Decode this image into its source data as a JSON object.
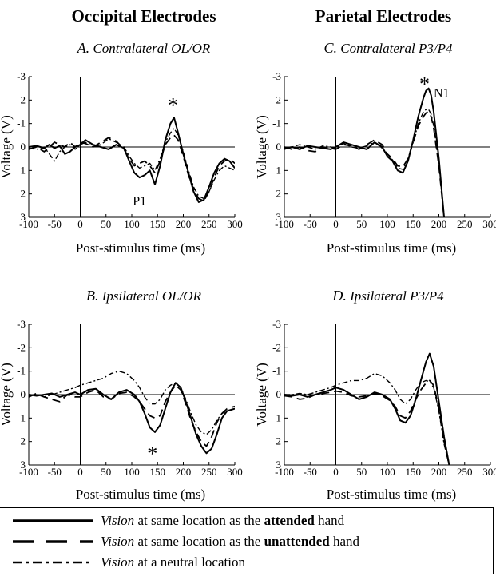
{
  "columns": {
    "left": "Occipital Electrodes",
    "right": "Parietal Electrodes"
  },
  "legend": [
    {
      "style": "solid",
      "italic": "Vision",
      "middle": " at same location as the ",
      "bold": "attended",
      "end": " hand"
    },
    {
      "style": "dashed",
      "italic": "Vision",
      "middle": " at same location as the ",
      "bold": "unattended",
      "end": " hand"
    },
    {
      "style": "dashdot",
      "italic": "Vision",
      "middle": " at a neutral location",
      "bold": "",
      "end": ""
    }
  ],
  "chart_data": [
    {
      "panel": "A",
      "type": "line",
      "title_letter": "A.",
      "title": "Contralateral OL/OR",
      "xlabel": "Post-stimulus time (ms)",
      "ylabel": "Voltage (V)",
      "xlim": [
        -100,
        300
      ],
      "ylim": [
        3,
        -3
      ],
      "xticks": [
        "-100",
        "-50",
        "0",
        "50",
        "100",
        "150",
        "200",
        "250",
        "300"
      ],
      "yticks": [
        "-3",
        "-2",
        "-1",
        "0",
        "1",
        "2",
        "3"
      ],
      "annotations": [
        {
          "text": "*",
          "x": 180,
          "y": -1.9
        },
        {
          "text": "P1",
          "x": 115,
          "y": 2.3
        }
      ],
      "series": [
        {
          "style": "solid",
          "x": [
            -100,
            -85,
            -70,
            -60,
            -50,
            -40,
            -30,
            -20,
            -10,
            0,
            10,
            25,
            40,
            55,
            70,
            85,
            95,
            105,
            115,
            125,
            135,
            145,
            155,
            165,
            175,
            182,
            190,
            200,
            210,
            220,
            230,
            240,
            250,
            260,
            270,
            280,
            290,
            300
          ],
          "y": [
            0.0,
            -0.05,
            0.05,
            -0.1,
            0.05,
            -0.05,
            0.3,
            0.2,
            0.0,
            -0.1,
            -0.3,
            -0.1,
            0.0,
            0.1,
            -0.1,
            0.05,
            0.6,
            1.1,
            1.3,
            1.2,
            1.0,
            1.6,
            0.8,
            -0.3,
            -1.0,
            -1.25,
            -0.6,
            0.3,
            1.1,
            1.9,
            2.35,
            2.25,
            1.7,
            1.1,
            0.7,
            0.5,
            0.6,
            0.9
          ]
        },
        {
          "style": "dashed",
          "x": [
            -100,
            -85,
            -70,
            -60,
            -50,
            -40,
            -30,
            -20,
            -10,
            0,
            10,
            25,
            40,
            55,
            70,
            85,
            95,
            105,
            115,
            125,
            135,
            145,
            155,
            165,
            175,
            182,
            190,
            200,
            210,
            220,
            230,
            240,
            250,
            260,
            270,
            280,
            290,
            300
          ],
          "y": [
            0.1,
            0.0,
            0.2,
            0.0,
            -0.2,
            -0.1,
            0.0,
            -0.2,
            0.0,
            -0.2,
            -0.15,
            0.0,
            -0.2,
            -0.4,
            -0.25,
            0.1,
            0.5,
            0.8,
            0.7,
            0.6,
            0.8,
            1.1,
            0.6,
            -0.1,
            -0.4,
            -0.5,
            -0.3,
            0.4,
            1.2,
            1.8,
            2.2,
            2.3,
            1.9,
            1.3,
            0.8,
            0.6,
            0.5,
            0.7
          ]
        },
        {
          "style": "dashdot",
          "x": [
            -100,
            -85,
            -70,
            -60,
            -50,
            -40,
            -30,
            -20,
            -10,
            0,
            10,
            25,
            40,
            55,
            70,
            85,
            95,
            105,
            115,
            125,
            135,
            145,
            155,
            165,
            175,
            182,
            190,
            200,
            210,
            220,
            230,
            240,
            250,
            260,
            270,
            280,
            290,
            300
          ],
          "y": [
            0.05,
            0.1,
            0.0,
            0.3,
            0.6,
            0.2,
            0.0,
            -0.1,
            0.1,
            -0.1,
            -0.2,
            0.0,
            -0.1,
            -0.35,
            -0.2,
            0.0,
            0.4,
            0.7,
            0.9,
            0.8,
            0.7,
            1.0,
            0.5,
            -0.2,
            -0.6,
            -0.8,
            -0.5,
            0.2,
            1.0,
            1.7,
            2.1,
            2.2,
            1.9,
            1.4,
            1.0,
            0.8,
            0.9,
            1.0
          ]
        }
      ]
    },
    {
      "panel": "C",
      "type": "line",
      "title_letter": "C.",
      "title": "Contralateral P3/P4",
      "xlabel": "Post-stimulus time (ms)",
      "ylabel": "Voltage (V)",
      "xlim": [
        -100,
        300
      ],
      "ylim": [
        3,
        -3
      ],
      "xticks": [
        "-100",
        "-50",
        "0",
        "50",
        "100",
        "150",
        "200",
        "250",
        "300"
      ],
      "yticks": [
        "-3",
        "-2",
        "-1",
        "0",
        "1",
        "2",
        "3"
      ],
      "annotations": [
        {
          "text": "*",
          "x": 172,
          "y": -2.8
        },
        {
          "text": "N1",
          "x": 205,
          "y": -2.3
        }
      ],
      "series": [
        {
          "style": "solid",
          "x": [
            -100,
            -85,
            -70,
            -55,
            -40,
            -25,
            -10,
            0,
            15,
            30,
            45,
            60,
            75,
            90,
            100,
            110,
            120,
            130,
            140,
            150,
            160,
            170,
            175,
            180,
            185,
            190,
            200,
            210
          ],
          "y": [
            0.05,
            0.0,
            0.1,
            -0.05,
            0.0,
            0.05,
            0.1,
            0.0,
            -0.2,
            -0.1,
            0.0,
            0.1,
            -0.2,
            0.0,
            0.4,
            0.6,
            1.0,
            1.1,
            0.6,
            -0.3,
            -1.3,
            -2.1,
            -2.4,
            -2.5,
            -2.2,
            -1.5,
            0.5,
            3.0
          ]
        },
        {
          "style": "dashed",
          "x": [
            -100,
            -85,
            -70,
            -55,
            -40,
            -25,
            -10,
            0,
            15,
            30,
            45,
            60,
            75,
            90,
            100,
            110,
            120,
            130,
            140,
            150,
            160,
            170,
            175,
            180,
            185,
            190,
            200,
            210
          ],
          "y": [
            0.0,
            0.1,
            0.0,
            0.15,
            0.2,
            0.0,
            0.05,
            0.1,
            -0.1,
            -0.05,
            0.1,
            -0.1,
            -0.3,
            -0.1,
            0.3,
            0.5,
            0.8,
            0.85,
            0.5,
            -0.2,
            -0.9,
            -1.3,
            -1.45,
            -1.5,
            -1.3,
            -0.8,
            0.8,
            3.0
          ]
        },
        {
          "style": "dashdot",
          "x": [
            -100,
            -85,
            -70,
            -55,
            -40,
            -25,
            -10,
            0,
            15,
            30,
            45,
            60,
            75,
            90,
            100,
            110,
            120,
            130,
            140,
            150,
            160,
            170,
            175,
            180,
            185,
            190,
            200,
            210
          ],
          "y": [
            0.1,
            0.0,
            -0.1,
            0.0,
            0.1,
            -0.05,
            0.0,
            0.05,
            -0.15,
            0.0,
            0.05,
            -0.05,
            -0.2,
            0.05,
            0.35,
            0.55,
            0.9,
            0.95,
            0.5,
            -0.2,
            -1.0,
            -1.5,
            -1.6,
            -1.6,
            -1.4,
            -0.9,
            0.7,
            3.0
          ]
        }
      ]
    },
    {
      "panel": "B",
      "type": "line",
      "title_letter": "B.",
      "title": "Ipsilateral OL/OR",
      "xlabel": "Post-stimulus time (ms)",
      "ylabel": "Voltage (V)",
      "xlim": [
        -100,
        300
      ],
      "ylim": [
        3,
        -3
      ],
      "xticks": [
        "-100",
        "-50",
        "0",
        "50",
        "100",
        "150",
        "200",
        "250",
        "300"
      ],
      "yticks": [
        "-3",
        "-2",
        "-1",
        "0",
        "1",
        "2",
        "3"
      ],
      "annotations": [
        {
          "text": "*",
          "x": 140,
          "y": 2.4
        }
      ],
      "series": [
        {
          "style": "solid",
          "x": [
            -100,
            -85,
            -70,
            -55,
            -40,
            -25,
            -10,
            0,
            15,
            30,
            45,
            60,
            75,
            90,
            105,
            115,
            125,
            135,
            145,
            155,
            165,
            175,
            185,
            195,
            205,
            215,
            225,
            235,
            245,
            255,
            265,
            275,
            285,
            300
          ],
          "y": [
            0.0,
            0.05,
            0.0,
            -0.05,
            0.1,
            0.0,
            -0.1,
            0.0,
            -0.2,
            -0.25,
            0.0,
            0.2,
            -0.1,
            -0.2,
            0.0,
            0.3,
            0.8,
            1.4,
            1.6,
            1.3,
            0.6,
            -0.1,
            -0.5,
            -0.3,
            0.3,
            1.0,
            1.7,
            2.2,
            2.5,
            2.3,
            1.7,
            1.0,
            0.7,
            0.6
          ]
        },
        {
          "style": "dashed",
          "x": [
            -100,
            -85,
            -70,
            -55,
            -40,
            -25,
            -10,
            0,
            15,
            30,
            45,
            60,
            75,
            90,
            105,
            115,
            125,
            135,
            145,
            155,
            165,
            175,
            185,
            195,
            205,
            215,
            225,
            235,
            245,
            255,
            265,
            275,
            285,
            300
          ],
          "y": [
            0.1,
            -0.05,
            0.1,
            0.2,
            0.3,
            0.0,
            0.1,
            0.1,
            -0.1,
            -0.2,
            0.1,
            0.2,
            -0.05,
            -0.1,
            0.1,
            0.3,
            0.6,
            0.9,
            1.0,
            0.9,
            0.3,
            -0.1,
            -0.4,
            -0.2,
            0.4,
            1.1,
            1.6,
            2.0,
            2.2,
            1.8,
            1.2,
            0.8,
            0.6,
            0.5
          ]
        },
        {
          "style": "dashdot",
          "x": [
            -100,
            -85,
            -70,
            -55,
            -40,
            -25,
            -10,
            0,
            15,
            30,
            45,
            60,
            75,
            90,
            105,
            115,
            125,
            135,
            145,
            155,
            165,
            175,
            185,
            195,
            205,
            215,
            225,
            235,
            245,
            255,
            265,
            275,
            285,
            300
          ],
          "y": [
            0.05,
            0.0,
            0.1,
            0.0,
            -0.1,
            -0.2,
            -0.3,
            -0.4,
            -0.5,
            -0.6,
            -0.7,
            -0.9,
            -1.0,
            -0.9,
            -0.6,
            -0.3,
            0.1,
            0.4,
            0.4,
            0.2,
            -0.2,
            -0.4,
            -0.5,
            -0.3,
            0.2,
            0.8,
            1.3,
            1.6,
            1.7,
            1.5,
            1.1,
            0.8,
            0.7,
            0.6
          ]
        }
      ]
    },
    {
      "panel": "D",
      "type": "line",
      "title_letter": "D.",
      "title": "Ipsilateral P3/P4",
      "xlabel": "Post-stimulus time (ms)",
      "ylabel": "Voltage (V)",
      "xlim": [
        -100,
        300
      ],
      "ylim": [
        3,
        -3
      ],
      "xticks": [
        "-100",
        "-50",
        "0",
        "50",
        "100",
        "150",
        "200",
        "250",
        "300"
      ],
      "yticks": [
        "-3",
        "-2",
        "-1",
        "0",
        "1",
        "2",
        "3"
      ],
      "annotations": [],
      "series": [
        {
          "style": "solid",
          "x": [
            -100,
            -85,
            -70,
            -55,
            -40,
            -25,
            -10,
            0,
            15,
            30,
            45,
            60,
            75,
            90,
            105,
            115,
            125,
            135,
            145,
            155,
            165,
            175,
            182,
            190,
            200,
            210,
            220
          ],
          "y": [
            0.0,
            0.05,
            0.0,
            0.1,
            0.0,
            -0.1,
            -0.2,
            -0.3,
            -0.2,
            0.0,
            0.2,
            0.1,
            -0.1,
            0.0,
            0.2,
            0.6,
            1.1,
            1.2,
            0.9,
            0.2,
            -0.6,
            -1.4,
            -1.75,
            -1.2,
            0.3,
            1.8,
            3.0
          ]
        },
        {
          "style": "dashed",
          "x": [
            -100,
            -85,
            -70,
            -55,
            -40,
            -25,
            -10,
            0,
            15,
            30,
            45,
            60,
            75,
            90,
            105,
            115,
            125,
            135,
            145,
            155,
            165,
            175,
            182,
            190,
            200,
            210,
            220
          ],
          "y": [
            0.05,
            0.1,
            0.2,
            0.15,
            0.0,
            -0.05,
            -0.1,
            -0.15,
            -0.1,
            0.05,
            0.1,
            0.05,
            -0.05,
            0.05,
            0.25,
            0.5,
            0.9,
            1.0,
            0.7,
            0.2,
            -0.2,
            -0.5,
            -0.6,
            -0.4,
            0.6,
            2.0,
            3.0
          ]
        },
        {
          "style": "dashdot",
          "x": [
            -100,
            -85,
            -70,
            -55,
            -40,
            -25,
            -10,
            0,
            15,
            30,
            45,
            60,
            75,
            90,
            105,
            115,
            125,
            135,
            145,
            155,
            165,
            175,
            182,
            190,
            200,
            210,
            220
          ],
          "y": [
            0.0,
            0.0,
            -0.05,
            0.0,
            -0.1,
            -0.2,
            -0.3,
            -0.4,
            -0.5,
            -0.6,
            -0.6,
            -0.7,
            -0.9,
            -0.8,
            -0.5,
            -0.2,
            0.2,
            0.4,
            0.2,
            -0.2,
            -0.5,
            -0.6,
            -0.55,
            -0.3,
            0.7,
            2.1,
            3.0
          ]
        }
      ]
    }
  ]
}
